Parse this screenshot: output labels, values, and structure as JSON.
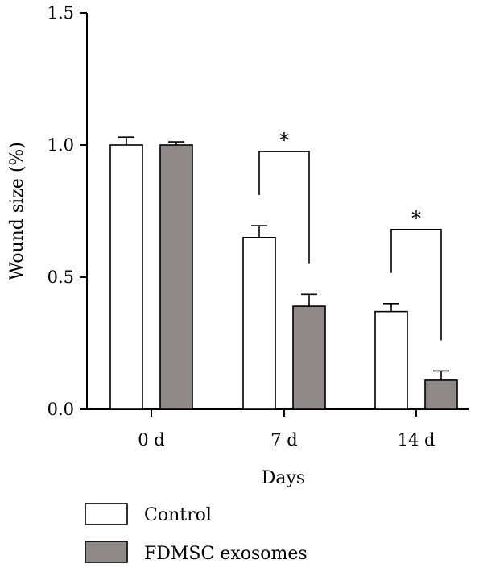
{
  "chart_data": {
    "type": "bar",
    "title": "",
    "xlabel": "Days",
    "ylabel": "Wound size (%)",
    "categories": [
      "0 d",
      "7 d",
      "14 d"
    ],
    "ylim": [
      0,
      1.5
    ],
    "yticks": [
      "0.0",
      "0.5",
      "1.0",
      "1.5"
    ],
    "grid": false,
    "legend_position": "bottom-left",
    "series": [
      {
        "name": "Control",
        "color": "#ffffff",
        "values": [
          1.0,
          0.65,
          0.37
        ],
        "errors": [
          0.03,
          0.045,
          0.03
        ]
      },
      {
        "name": "FDMSC exosomes",
        "color": "#8f8a89",
        "values": [
          1.0,
          0.39,
          0.11
        ],
        "errors": [
          0.012,
          0.045,
          0.035
        ]
      }
    ],
    "annotations": [
      {
        "category": "7 d",
        "text": "*"
      },
      {
        "category": "14 d",
        "text": "*"
      }
    ]
  }
}
